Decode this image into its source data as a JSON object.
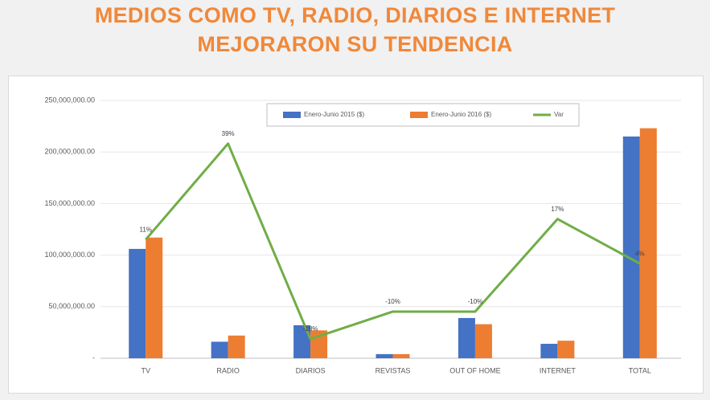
{
  "chart_data": {
    "type": "bar_line",
    "title": [
      "MEDIOS COMO TV, RADIO, DIARIOS E INTERNET",
      "MEJORARON SU TENDENCIA"
    ],
    "categories": [
      "TV",
      "RADIO",
      "DIARIOS",
      "REVISTAS",
      "OUT OF HOME",
      "INTERNET",
      "TOTAL"
    ],
    "series": [
      {
        "name": "Enero-Junio 2015 ($)",
        "color": "#4472c4",
        "values": [
          106000000,
          16000000,
          32000000,
          4000000,
          39000000,
          14000000,
          215000000
        ]
      },
      {
        "name": "Enero-Junio 2016 ($)",
        "color": "#ed7d31",
        "values": [
          117000000,
          22000000,
          27000000,
          4000000,
          33000000,
          17000000,
          223000000
        ]
      },
      {
        "name": "Var",
        "color": "#70ad47",
        "axis": "y2",
        "values": [
          11,
          39,
          -18,
          -10,
          -10,
          17,
          4
        ],
        "value_labels": [
          "11%",
          "39%",
          "-18%",
          "-10%",
          "-10%",
          "17%",
          "4%"
        ]
      }
    ],
    "ylim": [
      0,
      250000000
    ],
    "yticks": [
      {
        "value": 0,
        "label": "-"
      },
      {
        "value": 50000000,
        "label": "50,000,000.00"
      },
      {
        "value": 100000000,
        "label": "100,000,000.00"
      },
      {
        "value": 150000000,
        "label": "150,000,000.00"
      },
      {
        "value": 200000000,
        "label": "200,000,000.00"
      },
      {
        "value": 250000000,
        "label": "250,000,000.00"
      }
    ],
    "y2lim": [
      -23.6,
      51.6
    ],
    "grid": true
  }
}
